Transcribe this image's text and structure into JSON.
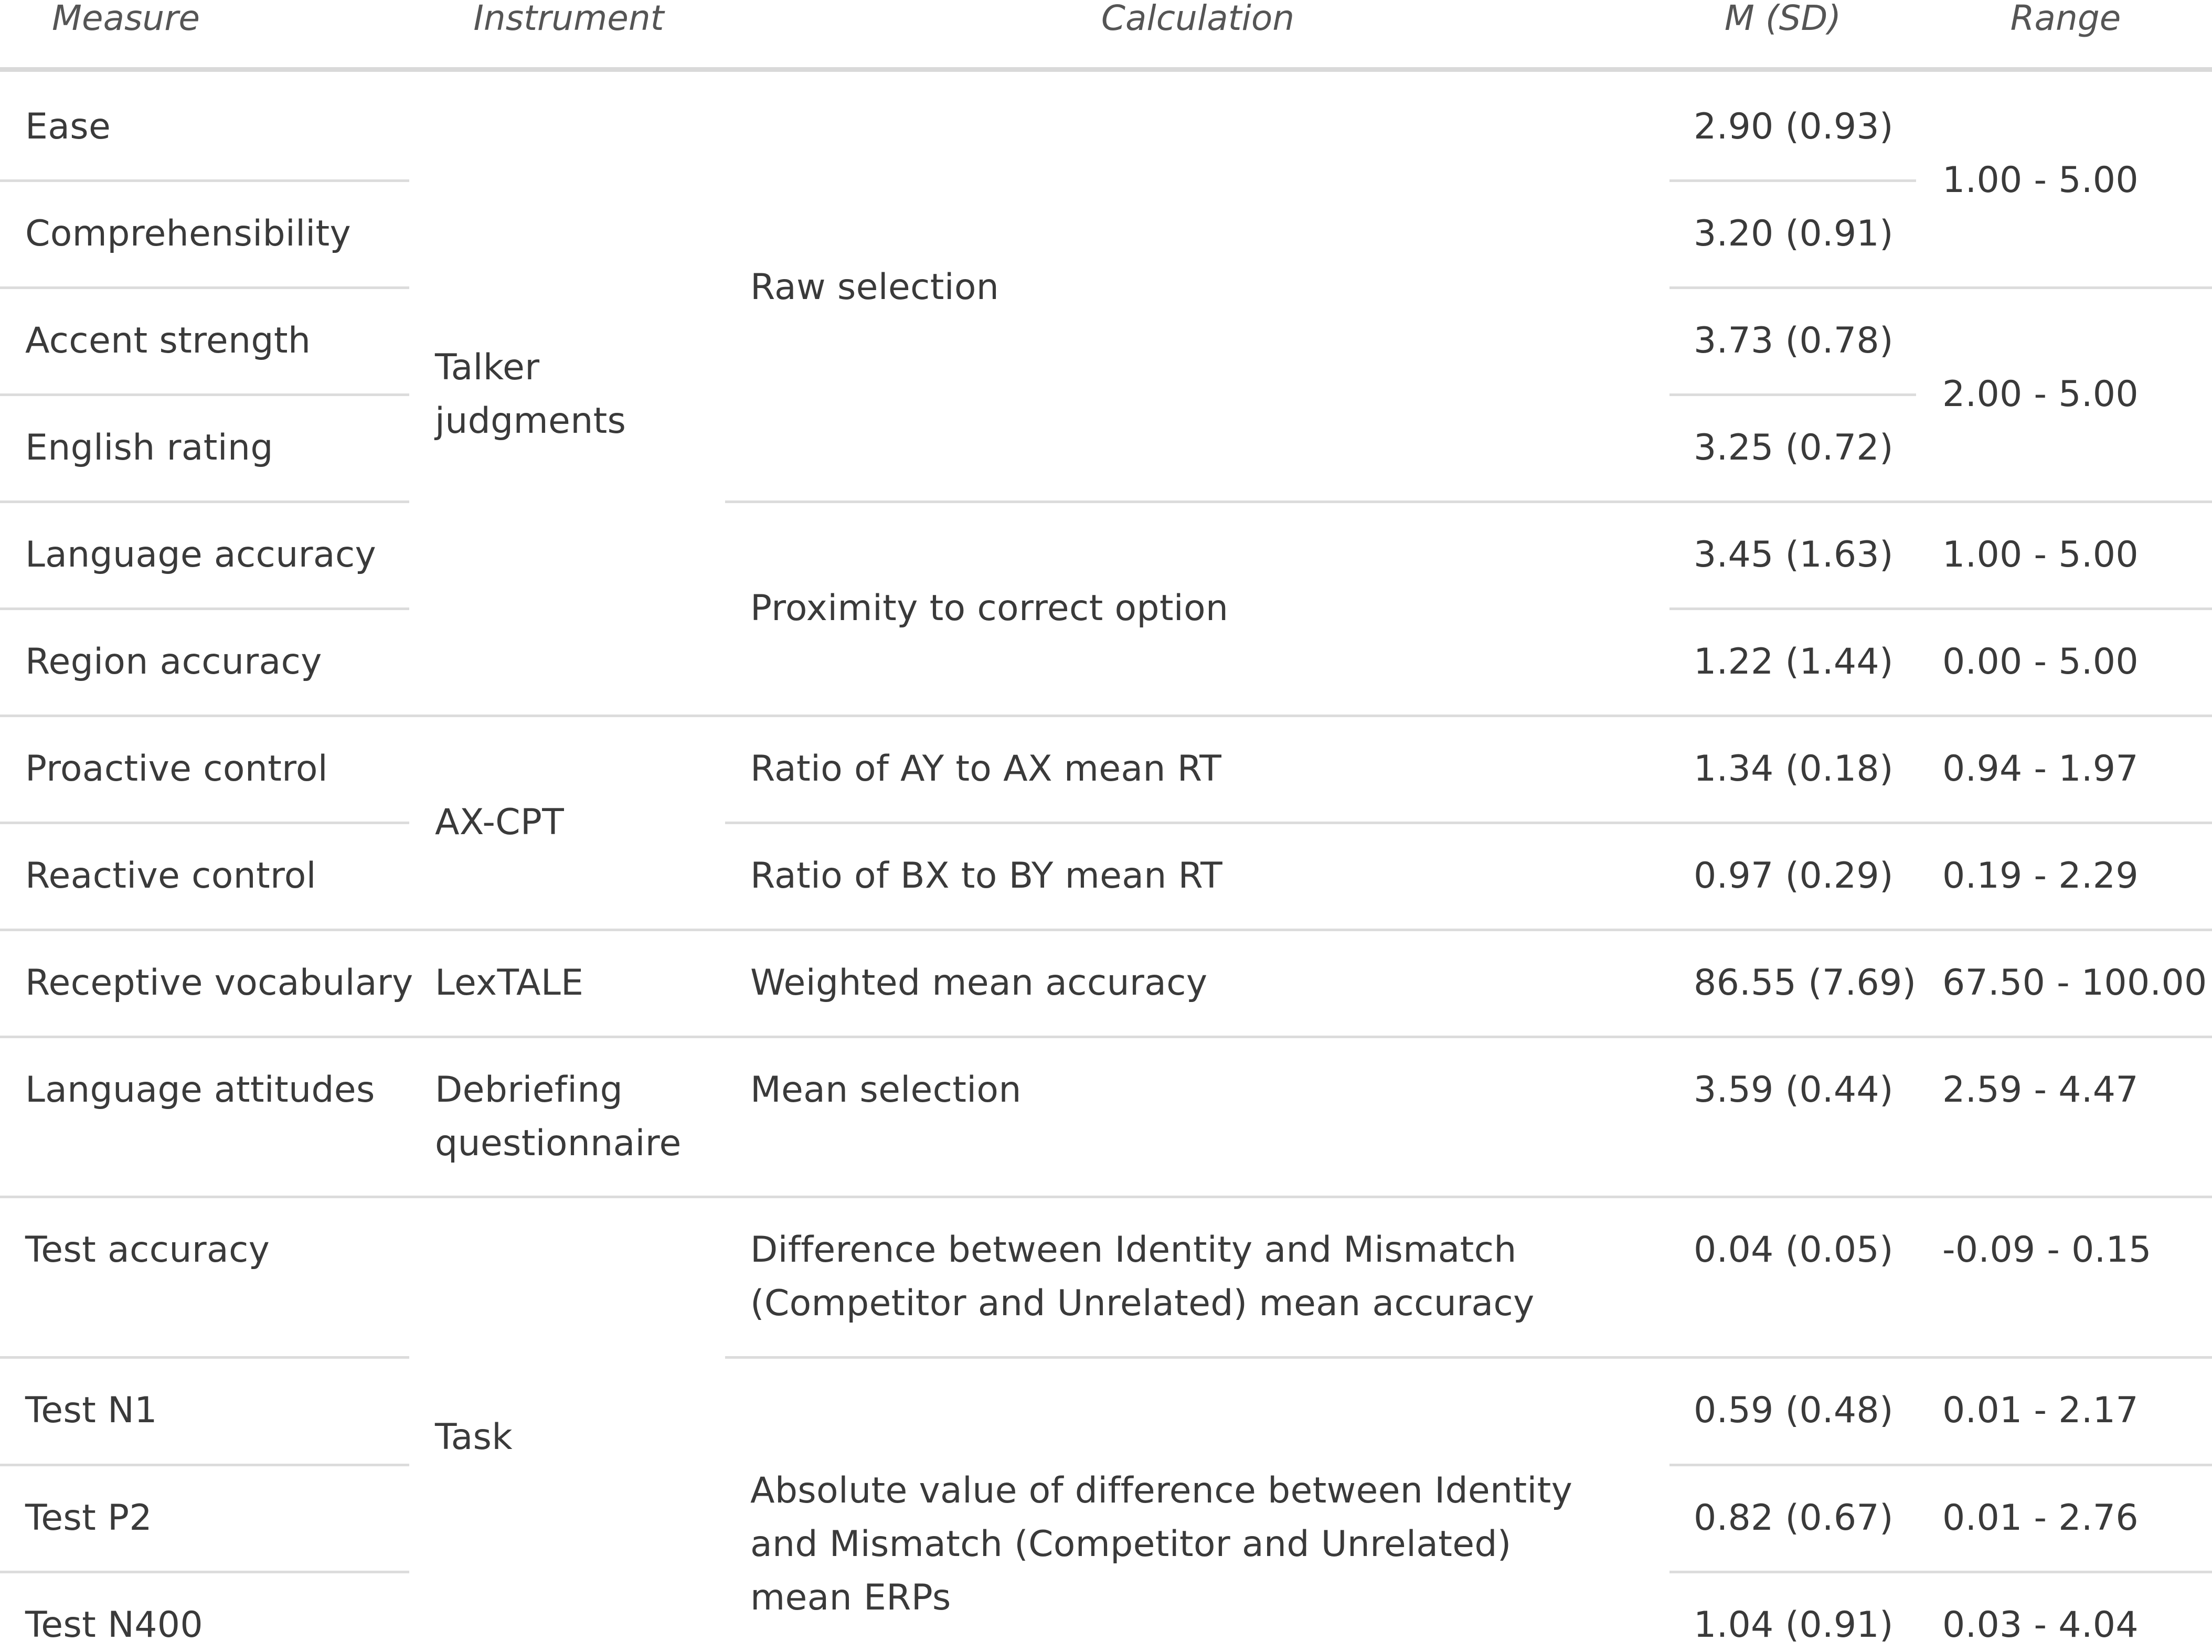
{
  "headers": {
    "measure": "Measure",
    "instrument": "Instrument",
    "calculation": "Calculation",
    "msd": "M (SD)",
    "range": "Range"
  },
  "measures": [
    "Ease",
    "Comprehensibility",
    "Accent strength",
    "English rating",
    "Language accuracy",
    "Region accuracy",
    "Proactive control",
    "Reactive control",
    "Receptive vocabulary",
    "Language attitudes",
    "Test accuracy",
    "Test N1",
    "Test P2",
    "Test N400"
  ],
  "instruments": {
    "talker_judgments": "Talker judgments",
    "axcpt": "AX-CPT",
    "lextale": "LexTALE",
    "debriefing": "Debriefing questionnaire",
    "task": "Task"
  },
  "calculations": {
    "raw_selection": "Raw selection",
    "proximity": "Proximity to correct option",
    "ay_ax": "Ratio of AY to AX mean RT",
    "bx_by": "Ratio of BX to BY mean RT",
    "weighted": "Weighted mean accuracy",
    "mean_selection": "Mean selection",
    "difference_accuracy": "Difference between Identity and Mismatch (Competitor and Unrelated) mean accuracy",
    "absolute_erp": "Absolute value of difference between Identity and Mismatch (Competitor and Unrelated) mean ERPs"
  },
  "msd": [
    "2.90 (0.93)",
    "3.20 (0.91)",
    "3.73 (0.78)",
    "3.25 (0.72)",
    "3.45 (1.63)",
    "1.22 (1.44)",
    "1.34 (0.18)",
    "0.97 (0.29)",
    "86.55 (7.69)",
    "3.59 (0.44)",
    "0.04 (0.05)",
    "0.59 (0.48)",
    "0.82 (0.67)",
    "1.04 (0.91)"
  ],
  "ranges": {
    "ease_comp": "1.00 - 5.00",
    "accent_english": "2.00 - 5.00",
    "language_accuracy": "1.00 - 5.00",
    "region_accuracy": "0.00 - 5.00",
    "proactive": "0.94 - 1.97",
    "reactive": "0.19 - 2.29",
    "receptive": "67.50 - 100.00",
    "attitudes": "2.59 - 4.47",
    "test_accuracy": "-0.09 - 0.15",
    "test_n1": "0.01 - 2.17",
    "test_p2": "0.01 - 2.76",
    "test_n400": "0.03 - 4.04"
  }
}
